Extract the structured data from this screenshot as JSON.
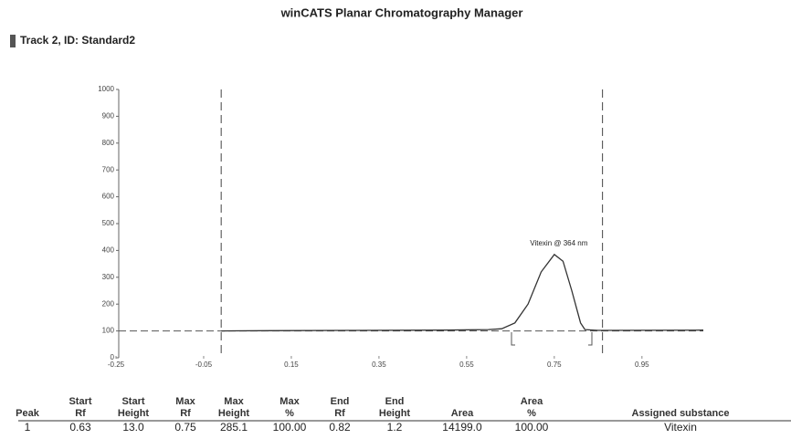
{
  "title": "winCATS Planar Chromatography Manager",
  "subtitle": "Track 2, ID: Standard2",
  "chart_data": {
    "type": "line",
    "annotation": "Vitexin @ 364 nm",
    "x": [
      -0.01,
      0.1,
      0.3,
      0.5,
      0.6,
      0.63,
      0.66,
      0.69,
      0.72,
      0.75,
      0.77,
      0.79,
      0.81,
      0.82,
      0.85,
      1.09
    ],
    "values": [
      100,
      101,
      102,
      103,
      105,
      108,
      130,
      200,
      320,
      385,
      360,
      250,
      130,
      105,
      102,
      103
    ],
    "color": "#333333",
    "baseline": 100,
    "vlines": [
      -0.01,
      0.86
    ],
    "xlim": [
      -0.25,
      1.09
    ],
    "ylim": [
      0,
      1000
    ],
    "xticks": [
      -0.25,
      -0.05,
      0.15,
      0.35,
      0.55,
      0.75,
      0.95
    ],
    "yticks": [
      0,
      100,
      200,
      300,
      400,
      500,
      600,
      700,
      800,
      900,
      1000
    ]
  },
  "table": {
    "header": [
      [
        "Peak"
      ],
      [
        "Start",
        "Rf"
      ],
      [
        "Start",
        "Height"
      ],
      [
        "Max",
        "Rf"
      ],
      [
        "Max",
        "Height"
      ],
      [
        "Max",
        "%"
      ],
      [
        "End",
        "Rf"
      ],
      [
        "End",
        "Height"
      ],
      [
        "Area"
      ],
      [
        "Area",
        "%"
      ],
      [
        "Assigned substance"
      ]
    ],
    "rows": [
      [
        "1",
        "0.63",
        "13.0",
        "0.75",
        "285.1",
        "100.00",
        "0.82",
        "1.2",
        "14199.0",
        "100.00",
        "Vitexin"
      ]
    ]
  }
}
